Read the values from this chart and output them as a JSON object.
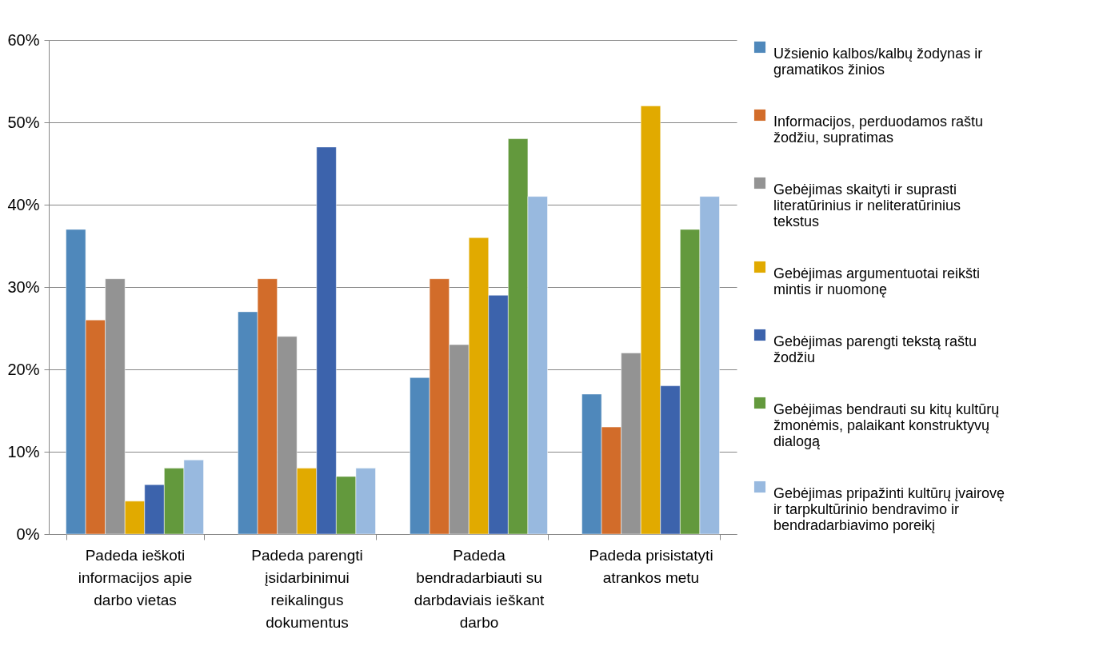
{
  "chart_data": {
    "type": "bar",
    "categories": [
      "Padeda ieškoti informacijos apie darbo vietas",
      "Padeda parengti įsidarbinimui reikalingus dokumentus",
      "Padeda bendradarbiauti su darbdaviais ieškant darbo",
      "Padeda prisistatyti atrankos metu"
    ],
    "series": [
      {
        "name": "Užsienio kalbos/kalbų žodynas ir gramatikos žinios",
        "color": "#4f88bb",
        "values": [
          37,
          27,
          19,
          17
        ]
      },
      {
        "name": "Informacijos, perduodamos raštu žodžiu, supratimas",
        "color": "#d26c2a",
        "values": [
          26,
          31,
          31,
          13
        ]
      },
      {
        "name": "Gebėjimas skaityti ir suprasti literatūrinius ir neliteratūrinius tekstus",
        "color": "#939393",
        "values": [
          31,
          24,
          23,
          22
        ]
      },
      {
        "name": "Gebėjimas argumentuotai reikšti mintis ir nuomonę",
        "color": "#e1aa00",
        "values": [
          4,
          8,
          36,
          52
        ]
      },
      {
        "name": "Gebėjimas parengti tekstą raštu žodžiu",
        "color": "#3c63ac",
        "values": [
          6,
          47,
          29,
          18
        ]
      },
      {
        "name": "Gebėjimas bendrauti su kitų kultūrų žmonėmis, palaikant konstruktyvų dialogą",
        "color": "#63993d",
        "values": [
          8,
          7,
          48,
          37
        ]
      },
      {
        "name": "Gebėjimas pripažinti kultūrų įvairovę ir tarpkultūrinio bendravimo ir bendradarbiavimo poreikį",
        "color": "#98b9df",
        "values": [
          9,
          8,
          41,
          41
        ]
      }
    ],
    "ylim": [
      0,
      60
    ],
    "yticks": [
      {
        "value": 0,
        "label": "0%"
      },
      {
        "value": 10,
        "label": "10%"
      },
      {
        "value": 20,
        "label": "20%"
      },
      {
        "value": 30,
        "label": "30%"
      },
      {
        "value": 40,
        "label": "40%"
      },
      {
        "value": 50,
        "label": "50%"
      },
      {
        "value": 60,
        "label": "60%"
      }
    ],
    "grid": "y",
    "legend": "right"
  }
}
